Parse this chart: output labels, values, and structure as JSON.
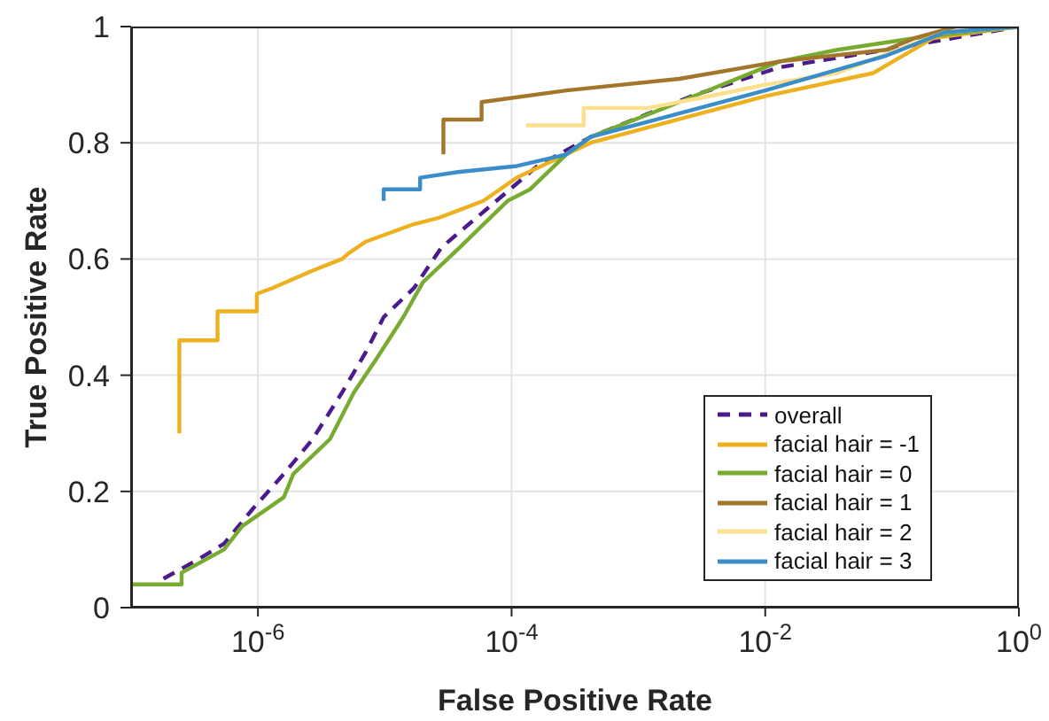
{
  "chart_data": {
    "type": "line",
    "xlabel": "False Positive Rate",
    "ylabel": "True Positive Rate",
    "log": "x",
    "xlim": [
      1e-07,
      1
    ],
    "xticks": [
      {
        "value": 1e-06,
        "label": "10$^{-6}$"
      },
      {
        "value": 0.0001,
        "label": "10$^{-4}$"
      },
      {
        "value": 0.01,
        "label": "10$^{-2}$"
      },
      {
        "value": 1,
        "label": "10$^{0}$"
      }
    ],
    "ylim": [
      0,
      1
    ],
    "yticks": [
      0,
      0.2,
      0.4,
      0.6,
      0.8,
      1
    ],
    "grid": true,
    "legend": "bottom right",
    "marker": "none",
    "series": [
      {
        "name": "overall",
        "color": "#4b1a8c",
        "line_style": "dashed",
        "x": [
          1.8e-07,
          3.2e-07,
          5.4e-07,
          9.1e-07,
          1.6e-06,
          2.7e-06,
          4.6e-06,
          7.1e-06,
          9.8e-06,
          1.7e-05,
          2.8e-05,
          6.7e-05,
          0.00016,
          0.00042,
          0.0026,
          0.013,
          0.09,
          1
        ],
        "values": [
          0.05,
          0.08,
          0.11,
          0.17,
          0.23,
          0.29,
          0.37,
          0.44,
          0.5,
          0.55,
          0.62,
          0.69,
          0.76,
          0.81,
          0.88,
          0.93,
          0.96,
          1
        ]
      },
      {
        "name": "facial hair = -1",
        "color": "#edb120",
        "x": [
          2.4e-07,
          2.4e-07,
          4.8e-07,
          4.8e-07,
          9.8e-07,
          9.8e-07,
          1.3e-06,
          2.7e-06,
          4.6e-06,
          5.2e-06,
          7.1e-06,
          1.7e-05,
          2.6e-05,
          6e-05,
          0.00011,
          0.00027,
          0.00042,
          0.01,
          0.071,
          0.21,
          1
        ],
        "values": [
          0.3,
          0.46,
          0.46,
          0.51,
          0.51,
          0.54,
          0.55,
          0.58,
          0.6,
          0.61,
          0.63,
          0.66,
          0.67,
          0.7,
          0.74,
          0.78,
          0.8,
          0.88,
          0.92,
          0.98,
          1
        ]
      },
      {
        "name": "facial hair = 0",
        "color": "#77ac30",
        "x": [
          1e-07,
          2.5e-07,
          2.5e-07,
          5.4e-07,
          7.5e-07,
          1.6e-06,
          1.9e-06,
          3.7e-06,
          5.7e-06,
          8.7e-06,
          1.4e-05,
          2e-05,
          3.9e-05,
          9.3e-05,
          0.00014,
          0.00027,
          0.00042,
          0.0021,
          0.013,
          0.037,
          0.15,
          1
        ],
        "values": [
          0.04,
          0.04,
          0.06,
          0.1,
          0.14,
          0.19,
          0.23,
          0.29,
          0.37,
          0.43,
          0.5,
          0.56,
          0.62,
          0.7,
          0.72,
          0.78,
          0.81,
          0.87,
          0.94,
          0.96,
          0.98,
          1
        ]
      },
      {
        "name": "facial hair = 1",
        "color": "#a2772b",
        "x": [
          2.9e-05,
          2.9e-05,
          5.8e-05,
          5.8e-05,
          0.00027,
          0.0021,
          0.013,
          0.09,
          0.15,
          0.32,
          1
        ],
        "values": [
          0.78,
          0.84,
          0.84,
          0.87,
          0.89,
          0.91,
          0.94,
          0.96,
          0.98,
          1,
          1
        ]
      },
      {
        "name": "facial hair = 2",
        "color": "#fde08e",
        "x": [
          0.00013,
          0.00037,
          0.00037,
          0.0012,
          0.0036,
          0.01,
          0.037,
          0.11,
          0.26,
          1
        ],
        "values": [
          0.83,
          0.83,
          0.86,
          0.86,
          0.88,
          0.9,
          0.92,
          0.96,
          0.99,
          1
        ]
      },
      {
        "name": "facial hair = 3",
        "color": "#3a8dc8",
        "x": [
          9.8e-06,
          9.8e-06,
          1.9e-05,
          1.9e-05,
          3.9e-05,
          0.00011,
          0.00027,
          0.00042,
          0.01,
          0.09,
          0.26,
          1
        ],
        "values": [
          0.7,
          0.72,
          0.72,
          0.74,
          0.75,
          0.76,
          0.78,
          0.81,
          0.89,
          0.95,
          0.99,
          1
        ]
      }
    ]
  }
}
